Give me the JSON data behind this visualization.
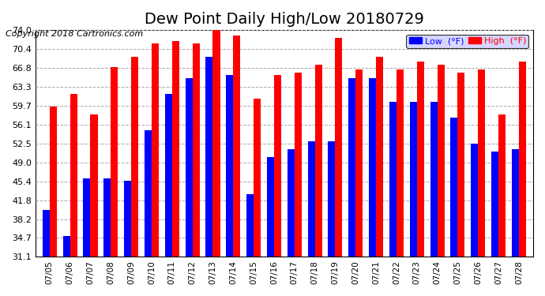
{
  "title": "Dew Point Daily High/Low 20180729",
  "copyright": "Copyright 2018 Cartronics.com",
  "dates": [
    "07/05",
    "07/06",
    "07/07",
    "07/08",
    "07/09",
    "07/10",
    "07/11",
    "07/12",
    "07/13",
    "07/14",
    "07/15",
    "07/16",
    "07/17",
    "07/18",
    "07/19",
    "07/20",
    "07/21",
    "07/22",
    "07/23",
    "07/24",
    "07/25",
    "07/26",
    "07/27",
    "07/28"
  ],
  "low_values": [
    40.0,
    35.0,
    46.0,
    46.0,
    45.5,
    55.0,
    62.0,
    65.0,
    69.0,
    65.5,
    43.0,
    50.0,
    51.5,
    53.0,
    53.0,
    65.0,
    65.0,
    60.5,
    60.5,
    60.5,
    57.5,
    52.5,
    51.0,
    51.5
  ],
  "high_values": [
    59.5,
    62.0,
    58.0,
    67.0,
    69.0,
    71.5,
    72.0,
    71.5,
    75.0,
    73.0,
    61.0,
    65.5,
    66.0,
    67.5,
    72.5,
    66.5,
    69.0,
    66.5,
    68.0,
    67.5,
    66.0,
    66.5,
    58.0,
    68.0
  ],
  "low_color": "#0000ff",
  "high_color": "#ff0000",
  "bg_color": "#ffffff",
  "grid_color": "#aaaaaa",
  "yticks": [
    31.1,
    34.7,
    38.2,
    41.8,
    45.4,
    49.0,
    52.5,
    56.1,
    59.7,
    63.3,
    66.8,
    70.4,
    74.0
  ],
  "ylim": [
    31.1,
    74.0
  ],
  "title_fontsize": 14,
  "copyright_fontsize": 8,
  "bar_width": 0.35
}
